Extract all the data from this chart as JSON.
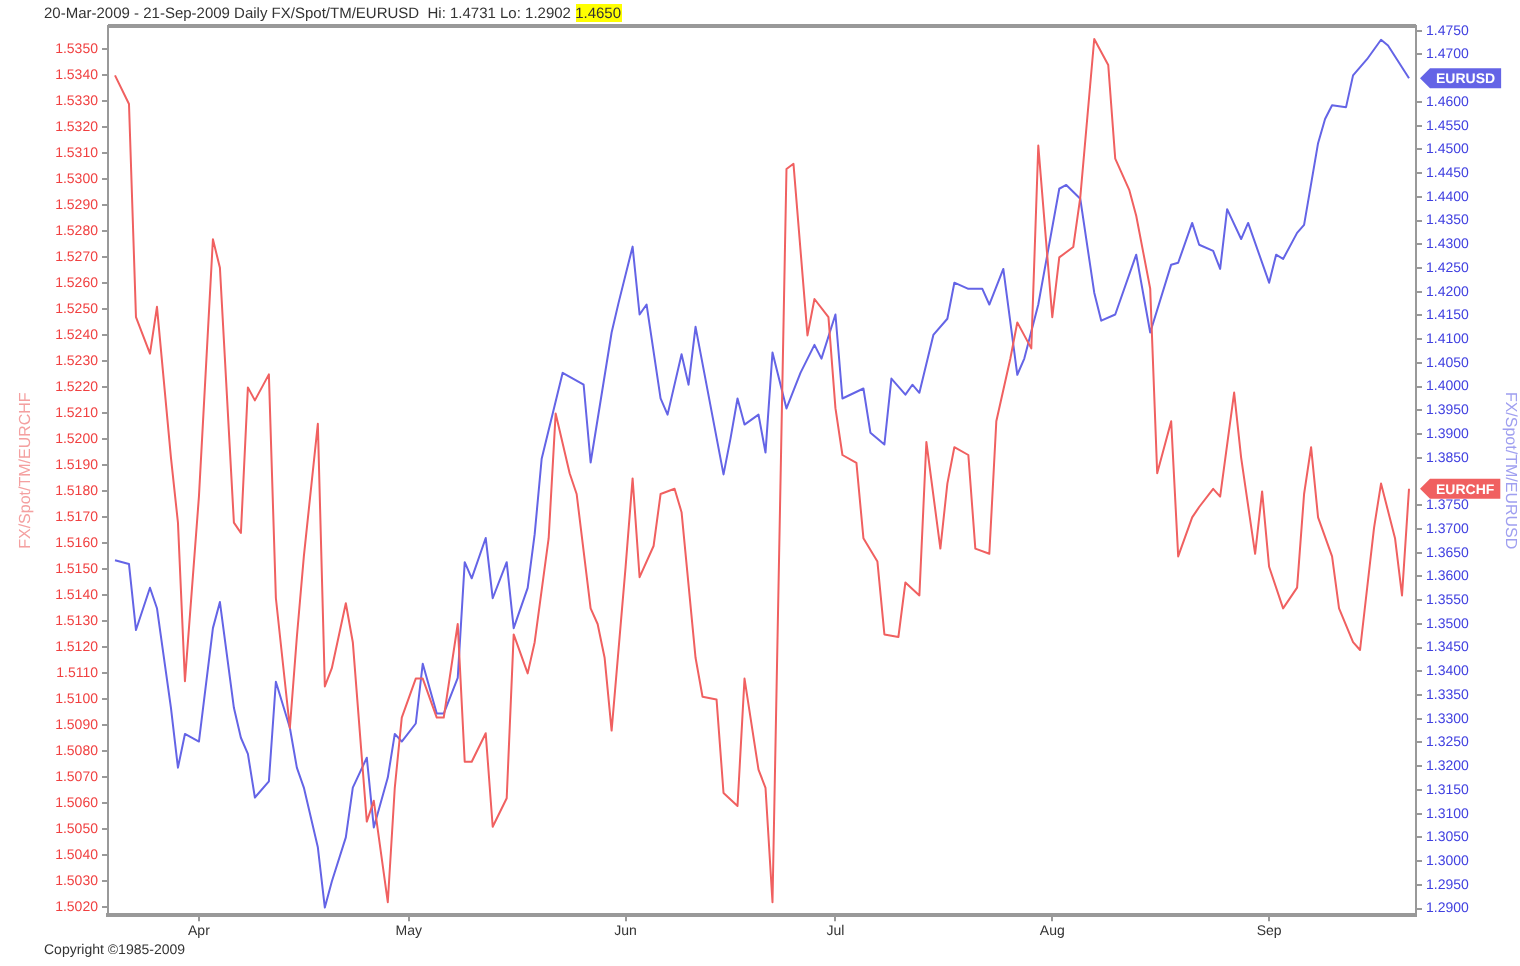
{
  "chart_data": {
    "type": "line",
    "title": "20-Mar-2009 - 21-Sep-2009 Daily FX/Spot/TM/EURUSD  Hi: 1.4731 Lo: 1.2902",
    "annotations": [
      "1.4650",
      "Copyright ©1985-2009"
    ],
    "ylabel": "FX/Spot/TM/EURCHF",
    "y2label": "FX/Spot/TM/EURUSD",
    "xlim": [
      "2009-03-19",
      "2009-09-22"
    ],
    "xticks": [
      {
        "value": "2009-04-01",
        "label": "Apr"
      },
      {
        "value": "2009-05-01",
        "label": "May"
      },
      {
        "value": "2009-06-01",
        "label": "Jun"
      },
      {
        "value": "2009-07-01",
        "label": "Jul"
      },
      {
        "value": "2009-08-01",
        "label": "Aug"
      },
      {
        "value": "2009-09-01",
        "label": "Sep"
      }
    ],
    "ylim": [
      1.5017,
      1.5359
    ],
    "yticks": [
      {
        "value": 1.502,
        "label": "1.5020"
      },
      {
        "value": 1.503,
        "label": "1.5030"
      },
      {
        "value": 1.504,
        "label": "1.5040"
      },
      {
        "value": 1.505,
        "label": "1.5050"
      },
      {
        "value": 1.506,
        "label": "1.5060"
      },
      {
        "value": 1.507,
        "label": "1.5070"
      },
      {
        "value": 1.508,
        "label": "1.5080"
      },
      {
        "value": 1.509,
        "label": "1.5090"
      },
      {
        "value": 1.51,
        "label": "1.5100"
      },
      {
        "value": 1.511,
        "label": "1.5110"
      },
      {
        "value": 1.512,
        "label": "1.5120"
      },
      {
        "value": 1.513,
        "label": "1.5130"
      },
      {
        "value": 1.514,
        "label": "1.5140"
      },
      {
        "value": 1.515,
        "label": "1.5150"
      },
      {
        "value": 1.516,
        "label": "1.5160"
      },
      {
        "value": 1.517,
        "label": "1.5170"
      },
      {
        "value": 1.518,
        "label": "1.5180"
      },
      {
        "value": 1.519,
        "label": "1.5190"
      },
      {
        "value": 1.52,
        "label": "1.5200"
      },
      {
        "value": 1.521,
        "label": "1.5210"
      },
      {
        "value": 1.522,
        "label": "1.5220"
      },
      {
        "value": 1.523,
        "label": "1.5230"
      },
      {
        "value": 1.524,
        "label": "1.5240"
      },
      {
        "value": 1.525,
        "label": "1.5250"
      },
      {
        "value": 1.526,
        "label": "1.5260"
      },
      {
        "value": 1.527,
        "label": "1.5270"
      },
      {
        "value": 1.528,
        "label": "1.5280"
      },
      {
        "value": 1.529,
        "label": "1.5290"
      },
      {
        "value": 1.53,
        "label": "1.5300"
      },
      {
        "value": 1.531,
        "label": "1.5310"
      },
      {
        "value": 1.532,
        "label": "1.5320"
      },
      {
        "value": 1.533,
        "label": "1.5330"
      },
      {
        "value": 1.534,
        "label": "1.5340"
      },
      {
        "value": 1.535,
        "label": "1.5350"
      }
    ],
    "y2lim": [
      1.2886,
      1.476
    ],
    "y2ticks": [
      {
        "value": 1.29,
        "label": "1.2900"
      },
      {
        "value": 1.295,
        "label": "1.2950"
      },
      {
        "value": 1.3,
        "label": "1.3000"
      },
      {
        "value": 1.305,
        "label": "1.3050"
      },
      {
        "value": 1.31,
        "label": "1.3100"
      },
      {
        "value": 1.315,
        "label": "1.3150"
      },
      {
        "value": 1.32,
        "label": "1.3200"
      },
      {
        "value": 1.325,
        "label": "1.3250"
      },
      {
        "value": 1.33,
        "label": "1.3300"
      },
      {
        "value": 1.335,
        "label": "1.3350"
      },
      {
        "value": 1.34,
        "label": "1.3400"
      },
      {
        "value": 1.345,
        "label": "1.3450"
      },
      {
        "value": 1.35,
        "label": "1.3500"
      },
      {
        "value": 1.355,
        "label": "1.3550"
      },
      {
        "value": 1.36,
        "label": "1.3600"
      },
      {
        "value": 1.365,
        "label": "1.3650"
      },
      {
        "value": 1.37,
        "label": "1.3700"
      },
      {
        "value": 1.375,
        "label": "1.3750"
      },
      {
        "value": 1.385,
        "label": "1.3850"
      },
      {
        "value": 1.39,
        "label": "1.3900"
      },
      {
        "value": 1.395,
        "label": "1.3950"
      },
      {
        "value": 1.4,
        "label": "1.4000"
      },
      {
        "value": 1.405,
        "label": "1.4050"
      },
      {
        "value": 1.41,
        "label": "1.4100"
      },
      {
        "value": 1.415,
        "label": "1.4150"
      },
      {
        "value": 1.42,
        "label": "1.4200"
      },
      {
        "value": 1.425,
        "label": "1.4250"
      },
      {
        "value": 1.43,
        "label": "1.4300"
      },
      {
        "value": 1.435,
        "label": "1.4350"
      },
      {
        "value": 1.44,
        "label": "1.4400"
      },
      {
        "value": 1.445,
        "label": "1.4450"
      },
      {
        "value": 1.45,
        "label": "1.4500"
      },
      {
        "value": 1.455,
        "label": "1.4550"
      },
      {
        "value": 1.46,
        "label": "1.4600"
      },
      {
        "value": 1.47,
        "label": "1.4700"
      },
      {
        "value": 1.475,
        "label": "1.4750"
      }
    ],
    "series": [
      {
        "name": "EURCHF",
        "color": "#f06060",
        "x": [
          "2009-03-20",
          "2009-03-22",
          "2009-03-23",
          "2009-03-25",
          "2009-03-26",
          "2009-03-28",
          "2009-03-29",
          "2009-03-30",
          "2009-04-01",
          "2009-04-03",
          "2009-04-04",
          "2009-04-06",
          "2009-04-07",
          "2009-04-08",
          "2009-04-09",
          "2009-04-11",
          "2009-04-12",
          "2009-04-14",
          "2009-04-15",
          "2009-04-16",
          "2009-04-18",
          "2009-04-19",
          "2009-04-20",
          "2009-04-22",
          "2009-04-23",
          "2009-04-25",
          "2009-04-26",
          "2009-04-28",
          "2009-04-29",
          "2009-04-30",
          "2009-05-02",
          "2009-05-03",
          "2009-05-05",
          "2009-05-06",
          "2009-05-08",
          "2009-05-09",
          "2009-05-10",
          "2009-05-12",
          "2009-05-13",
          "2009-05-15",
          "2009-05-16",
          "2009-05-18",
          "2009-05-19",
          "2009-05-21",
          "2009-05-22",
          "2009-05-24",
          "2009-05-25",
          "2009-05-27",
          "2009-05-28",
          "2009-05-29",
          "2009-05-30",
          "2009-06-01",
          "2009-06-02",
          "2009-06-03",
          "2009-06-05",
          "2009-06-06",
          "2009-06-08",
          "2009-06-09",
          "2009-06-11",
          "2009-06-12",
          "2009-06-14",
          "2009-06-15",
          "2009-06-17",
          "2009-06-18",
          "2009-06-20",
          "2009-06-21",
          "2009-06-22",
          "2009-06-24",
          "2009-06-25",
          "2009-06-27",
          "2009-06-28",
          "2009-06-30",
          "2009-07-01",
          "2009-07-02",
          "2009-07-04",
          "2009-07-05",
          "2009-07-07",
          "2009-07-08",
          "2009-07-10",
          "2009-07-11",
          "2009-07-13",
          "2009-07-14",
          "2009-07-16",
          "2009-07-17",
          "2009-07-18",
          "2009-07-20",
          "2009-07-21",
          "2009-07-23",
          "2009-07-24",
          "2009-07-26",
          "2009-07-27",
          "2009-07-29",
          "2009-07-30",
          "2009-08-01",
          "2009-08-02",
          "2009-08-04",
          "2009-08-05",
          "2009-08-07",
          "2009-08-09",
          "2009-08-10",
          "2009-08-12",
          "2009-08-13",
          "2009-08-15",
          "2009-08-16",
          "2009-08-18",
          "2009-08-19",
          "2009-08-21",
          "2009-08-22",
          "2009-08-24",
          "2009-08-25",
          "2009-08-27",
          "2009-08-28",
          "2009-08-30",
          "2009-08-31",
          "2009-09-01",
          "2009-09-03",
          "2009-09-05",
          "2009-09-06",
          "2009-09-07",
          "2009-09-08",
          "2009-09-10",
          "2009-09-11",
          "2009-09-13",
          "2009-09-14",
          "2009-09-16",
          "2009-09-17",
          "2009-09-19",
          "2009-09-20",
          "2009-09-21"
        ],
        "values": [
          1.534,
          1.5329,
          1.5247,
          1.5233,
          1.5251,
          1.5193,
          1.5168,
          1.5107,
          1.5178,
          1.5277,
          1.5266,
          1.5168,
          1.5164,
          1.522,
          1.5215,
          1.5225,
          1.5139,
          1.5089,
          1.5124,
          1.5155,
          1.5206,
          1.5105,
          1.5112,
          1.5137,
          1.5122,
          1.5053,
          1.5061,
          1.5022,
          1.5066,
          1.5093,
          1.5108,
          1.5108,
          1.5093,
          1.5093,
          1.5129,
          1.5076,
          1.5076,
          1.5087,
          1.5051,
          1.5062,
          1.5125,
          1.511,
          1.5122,
          1.5162,
          1.521,
          1.5187,
          1.5179,
          1.5135,
          1.5129,
          1.5116,
          1.5088,
          1.5151,
          1.5185,
          1.5147,
          1.5159,
          1.5179,
          1.5181,
          1.5172,
          1.5116,
          1.5101,
          1.51,
          1.5064,
          1.5059,
          1.5108,
          1.5073,
          1.5066,
          1.5022,
          1.5304,
          1.5306,
          1.524,
          1.5254,
          1.5247,
          1.5212,
          1.5194,
          1.5191,
          1.5162,
          1.5153,
          1.5125,
          1.5124,
          1.5145,
          1.514,
          1.5199,
          1.5158,
          1.5183,
          1.5197,
          1.5194,
          1.5158,
          1.5156,
          1.5207,
          1.5231,
          1.5245,
          1.5235,
          1.5313,
          1.5247,
          1.527,
          1.5274,
          1.5293,
          1.5354,
          1.5344,
          1.5308,
          1.5296,
          1.5286,
          1.5258,
          1.5187,
          1.5207,
          1.5155,
          1.517,
          1.5174,
          1.5181,
          1.5178,
          1.5218,
          1.5193,
          1.5156,
          1.518,
          1.5151,
          1.5135,
          1.5143,
          1.5179,
          1.5197,
          1.517,
          1.5155,
          1.5135,
          1.5122,
          1.5119,
          1.5166,
          1.5183,
          1.5162,
          1.514,
          1.5181
        ]
      },
      {
        "name": "EURUSD",
        "color": "#6464e6",
        "axis": "y2",
        "x": [
          "2009-03-20",
          "2009-03-22",
          "2009-03-23",
          "2009-03-25",
          "2009-03-26",
          "2009-03-28",
          "2009-03-29",
          "2009-03-30",
          "2009-04-01",
          "2009-04-03",
          "2009-04-04",
          "2009-04-06",
          "2009-04-07",
          "2009-04-08",
          "2009-04-09",
          "2009-04-11",
          "2009-04-12",
          "2009-04-14",
          "2009-04-15",
          "2009-04-16",
          "2009-04-18",
          "2009-04-19",
          "2009-04-20",
          "2009-04-22",
          "2009-04-23",
          "2009-04-25",
          "2009-04-26",
          "2009-04-28",
          "2009-04-29",
          "2009-04-30",
          "2009-05-02",
          "2009-05-03",
          "2009-05-05",
          "2009-05-06",
          "2009-05-08",
          "2009-05-09",
          "2009-05-10",
          "2009-05-12",
          "2009-05-13",
          "2009-05-15",
          "2009-05-16",
          "2009-05-18",
          "2009-05-19",
          "2009-05-20",
          "2009-05-23",
          "2009-05-26",
          "2009-05-27",
          "2009-05-30",
          "2009-05-31",
          "2009-06-02",
          "2009-06-03",
          "2009-06-04",
          "2009-06-06",
          "2009-06-07",
          "2009-06-09",
          "2009-06-10",
          "2009-06-11",
          "2009-06-15",
          "2009-06-16",
          "2009-06-17",
          "2009-06-18",
          "2009-06-20",
          "2009-06-21",
          "2009-06-22",
          "2009-06-24",
          "2009-06-26",
          "2009-06-28",
          "2009-06-29",
          "2009-07-01",
          "2009-07-02",
          "2009-07-05",
          "2009-07-06",
          "2009-07-08",
          "2009-07-09",
          "2009-07-11",
          "2009-07-12",
          "2009-07-13",
          "2009-07-15",
          "2009-07-17",
          "2009-07-18",
          "2009-07-20",
          "2009-07-22",
          "2009-07-23",
          "2009-07-25",
          "2009-07-27",
          "2009-07-28",
          "2009-07-30",
          "2009-08-02",
          "2009-08-03",
          "2009-08-05",
          "2009-08-07",
          "2009-08-08",
          "2009-08-10",
          "2009-08-13",
          "2009-08-15",
          "2009-08-18",
          "2009-08-19",
          "2009-08-21",
          "2009-08-22",
          "2009-08-24",
          "2009-08-25",
          "2009-08-26",
          "2009-08-28",
          "2009-08-29",
          "2009-09-01",
          "2009-09-02",
          "2009-09-03",
          "2009-09-05",
          "2009-09-06",
          "2009-09-08",
          "2009-09-09",
          "2009-09-10",
          "2009-09-12",
          "2009-09-13",
          "2009-09-15",
          "2009-09-17",
          "2009-09-18",
          "2009-09-21"
        ],
        "values": [
          1.3634,
          1.3626,
          1.3487,
          1.3576,
          1.3533,
          1.3323,
          1.3197,
          1.3268,
          1.3252,
          1.3491,
          1.3546,
          1.3323,
          1.326,
          1.3226,
          1.3134,
          1.3168,
          1.3378,
          1.3281,
          1.3197,
          1.3155,
          1.3029,
          1.2902,
          1.2957,
          1.305,
          1.3155,
          1.3218,
          1.3071,
          1.3176,
          1.3268,
          1.3252,
          1.329,
          1.3416,
          1.3311,
          1.3311,
          1.3386,
          1.363,
          1.3596,
          1.3681,
          1.3554,
          1.363,
          1.3491,
          1.3576,
          1.3689,
          1.3848,
          1.4029,
          1.4004,
          1.384,
          1.4114,
          1.4177,
          1.4295,
          1.4152,
          1.4173,
          1.3975,
          1.3941,
          1.4068,
          1.4004,
          1.4126,
          1.3815,
          1.3891,
          1.3975,
          1.392,
          1.3941,
          1.3861,
          1.4072,
          1.3954,
          1.4029,
          1.4088,
          1.4059,
          1.4152,
          1.3975,
          1.3996,
          1.3903,
          1.3878,
          1.4017,
          1.3983,
          1.4004,
          1.3987,
          1.4109,
          1.4143,
          1.4219,
          1.4206,
          1.4206,
          1.4173,
          1.4248,
          1.4025,
          1.4059,
          1.4173,
          1.4417,
          1.4425,
          1.4396,
          1.4198,
          1.4139,
          1.4152,
          1.4278,
          1.4114,
          1.4257,
          1.4261,
          1.4345,
          1.4299,
          1.4286,
          1.4248,
          1.4374,
          1.4311,
          1.4345,
          1.4219,
          1.4278,
          1.4269,
          1.4324,
          1.4341,
          1.4513,
          1.4564,
          1.4593,
          1.4589,
          1.4656,
          1.469,
          1.4731,
          1.4719,
          1.465
        ]
      }
    ]
  }
}
